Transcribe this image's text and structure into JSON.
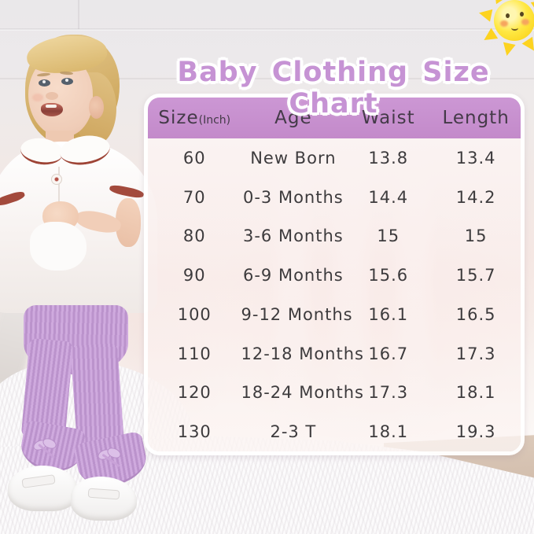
{
  "page": {
    "title": "Baby Clothing Size Chart"
  },
  "size_chart": {
    "header": {
      "size_label": "Size",
      "size_unit": "(Inch)",
      "age_label": "Age",
      "waist_label": "Waist",
      "length_label": "Length"
    },
    "rows": [
      {
        "size": "60",
        "age": "New Born",
        "waist": "13.8",
        "length": "13.4"
      },
      {
        "size": "70",
        "age": "0-3 Months",
        "waist": "14.4",
        "length": "14.2"
      },
      {
        "size": "80",
        "age": "3-6 Months",
        "waist": "15",
        "length": "15"
      },
      {
        "size": "90",
        "age": "6-9 Months",
        "waist": "15.6",
        "length": "15.7"
      },
      {
        "size": "100",
        "age": "9-12 Months",
        "waist": "16.1",
        "length": "16.5"
      },
      {
        "size": "110",
        "age": "12-18 Months",
        "waist": "16.7",
        "length": "17.3"
      },
      {
        "size": "120",
        "age": "18-24 Months",
        "waist": "17.3",
        "length": "18.1"
      },
      {
        "size": "130",
        "age": "2-3 T",
        "waist": "18.1",
        "length": "19.3"
      }
    ]
  },
  "chart_data": {
    "type": "table",
    "title": "Baby Clothing Size Chart",
    "columns": [
      "Size(Inch)",
      "Age",
      "Waist",
      "Length"
    ],
    "rows": [
      [
        "60",
        "New Born",
        "13.8",
        "13.4"
      ],
      [
        "70",
        "0-3 Months",
        "14.4",
        "14.2"
      ],
      [
        "80",
        "3-6 Months",
        "15",
        "15"
      ],
      [
        "90",
        "6-9 Months",
        "15.6",
        "15.7"
      ],
      [
        "100",
        "9-12 Months",
        "16.1",
        "16.5"
      ],
      [
        "110",
        "12-18 Months",
        "16.7",
        "17.3"
      ],
      [
        "120",
        "18-24 Months",
        "17.3",
        "18.1"
      ],
      [
        "130",
        "2-3 T",
        "18.1",
        "19.3"
      ]
    ]
  },
  "icons": {
    "sun": "smiling-sun-icon"
  },
  "colors": {
    "title_purple": "#c693d4",
    "header_purple": "#c78fcf",
    "pants_lilac": "#c7a0d6",
    "sun_yellow": "#ffe843",
    "table_text": "#3d3b3d"
  }
}
